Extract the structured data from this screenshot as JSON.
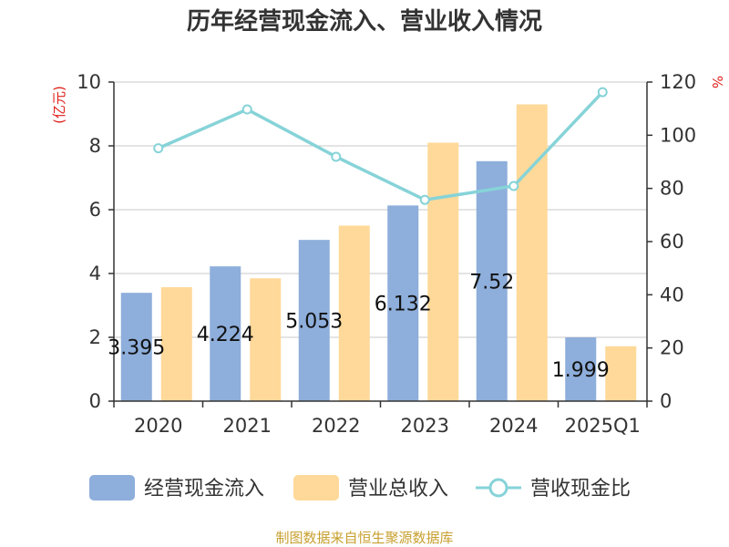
{
  "chart_data": {
    "type": "bar",
    "title": "历年经营现金流入、营业收入情况",
    "categories": [
      "2020",
      "2021",
      "2022",
      "2023",
      "2024",
      "2025Q1"
    ],
    "series": [
      {
        "name": "经营现金流入",
        "kind": "bar",
        "axis": "left",
        "color": "#8eaedb",
        "values": [
          3.395,
          4.224,
          5.053,
          6.132,
          7.52,
          1.999
        ]
      },
      {
        "name": "营业总收入",
        "kind": "bar",
        "axis": "left",
        "color": "#ffd999",
        "values": [
          3.57,
          3.85,
          5.5,
          8.1,
          9.3,
          1.72
        ]
      },
      {
        "name": "营收现金比",
        "kind": "line",
        "axis": "right",
        "color": "#86d3d8",
        "values": [
          95.1,
          109.7,
          91.9,
          75.7,
          80.9,
          116.2
        ]
      }
    ],
    "y_left": {
      "unit": "(亿元)",
      "unit_color": "#e0201a",
      "range": [
        0,
        10
      ],
      "ticks": [
        "0",
        "2",
        "4",
        "6",
        "8",
        "10"
      ]
    },
    "y_right": {
      "unit": "%",
      "unit_color": "#e0201a",
      "range": [
        0,
        120
      ],
      "ticks": [
        "0",
        "20",
        "40",
        "60",
        "80",
        "100",
        "120"
      ]
    },
    "bar_labels": [
      "3.395",
      "4.224",
      "5.053",
      "6.132",
      "7.52",
      "1.999"
    ],
    "grid": true,
    "legend": "bottom"
  },
  "source_text": "制图数据来自恒生聚源数据库",
  "source_color": "#c8a030"
}
